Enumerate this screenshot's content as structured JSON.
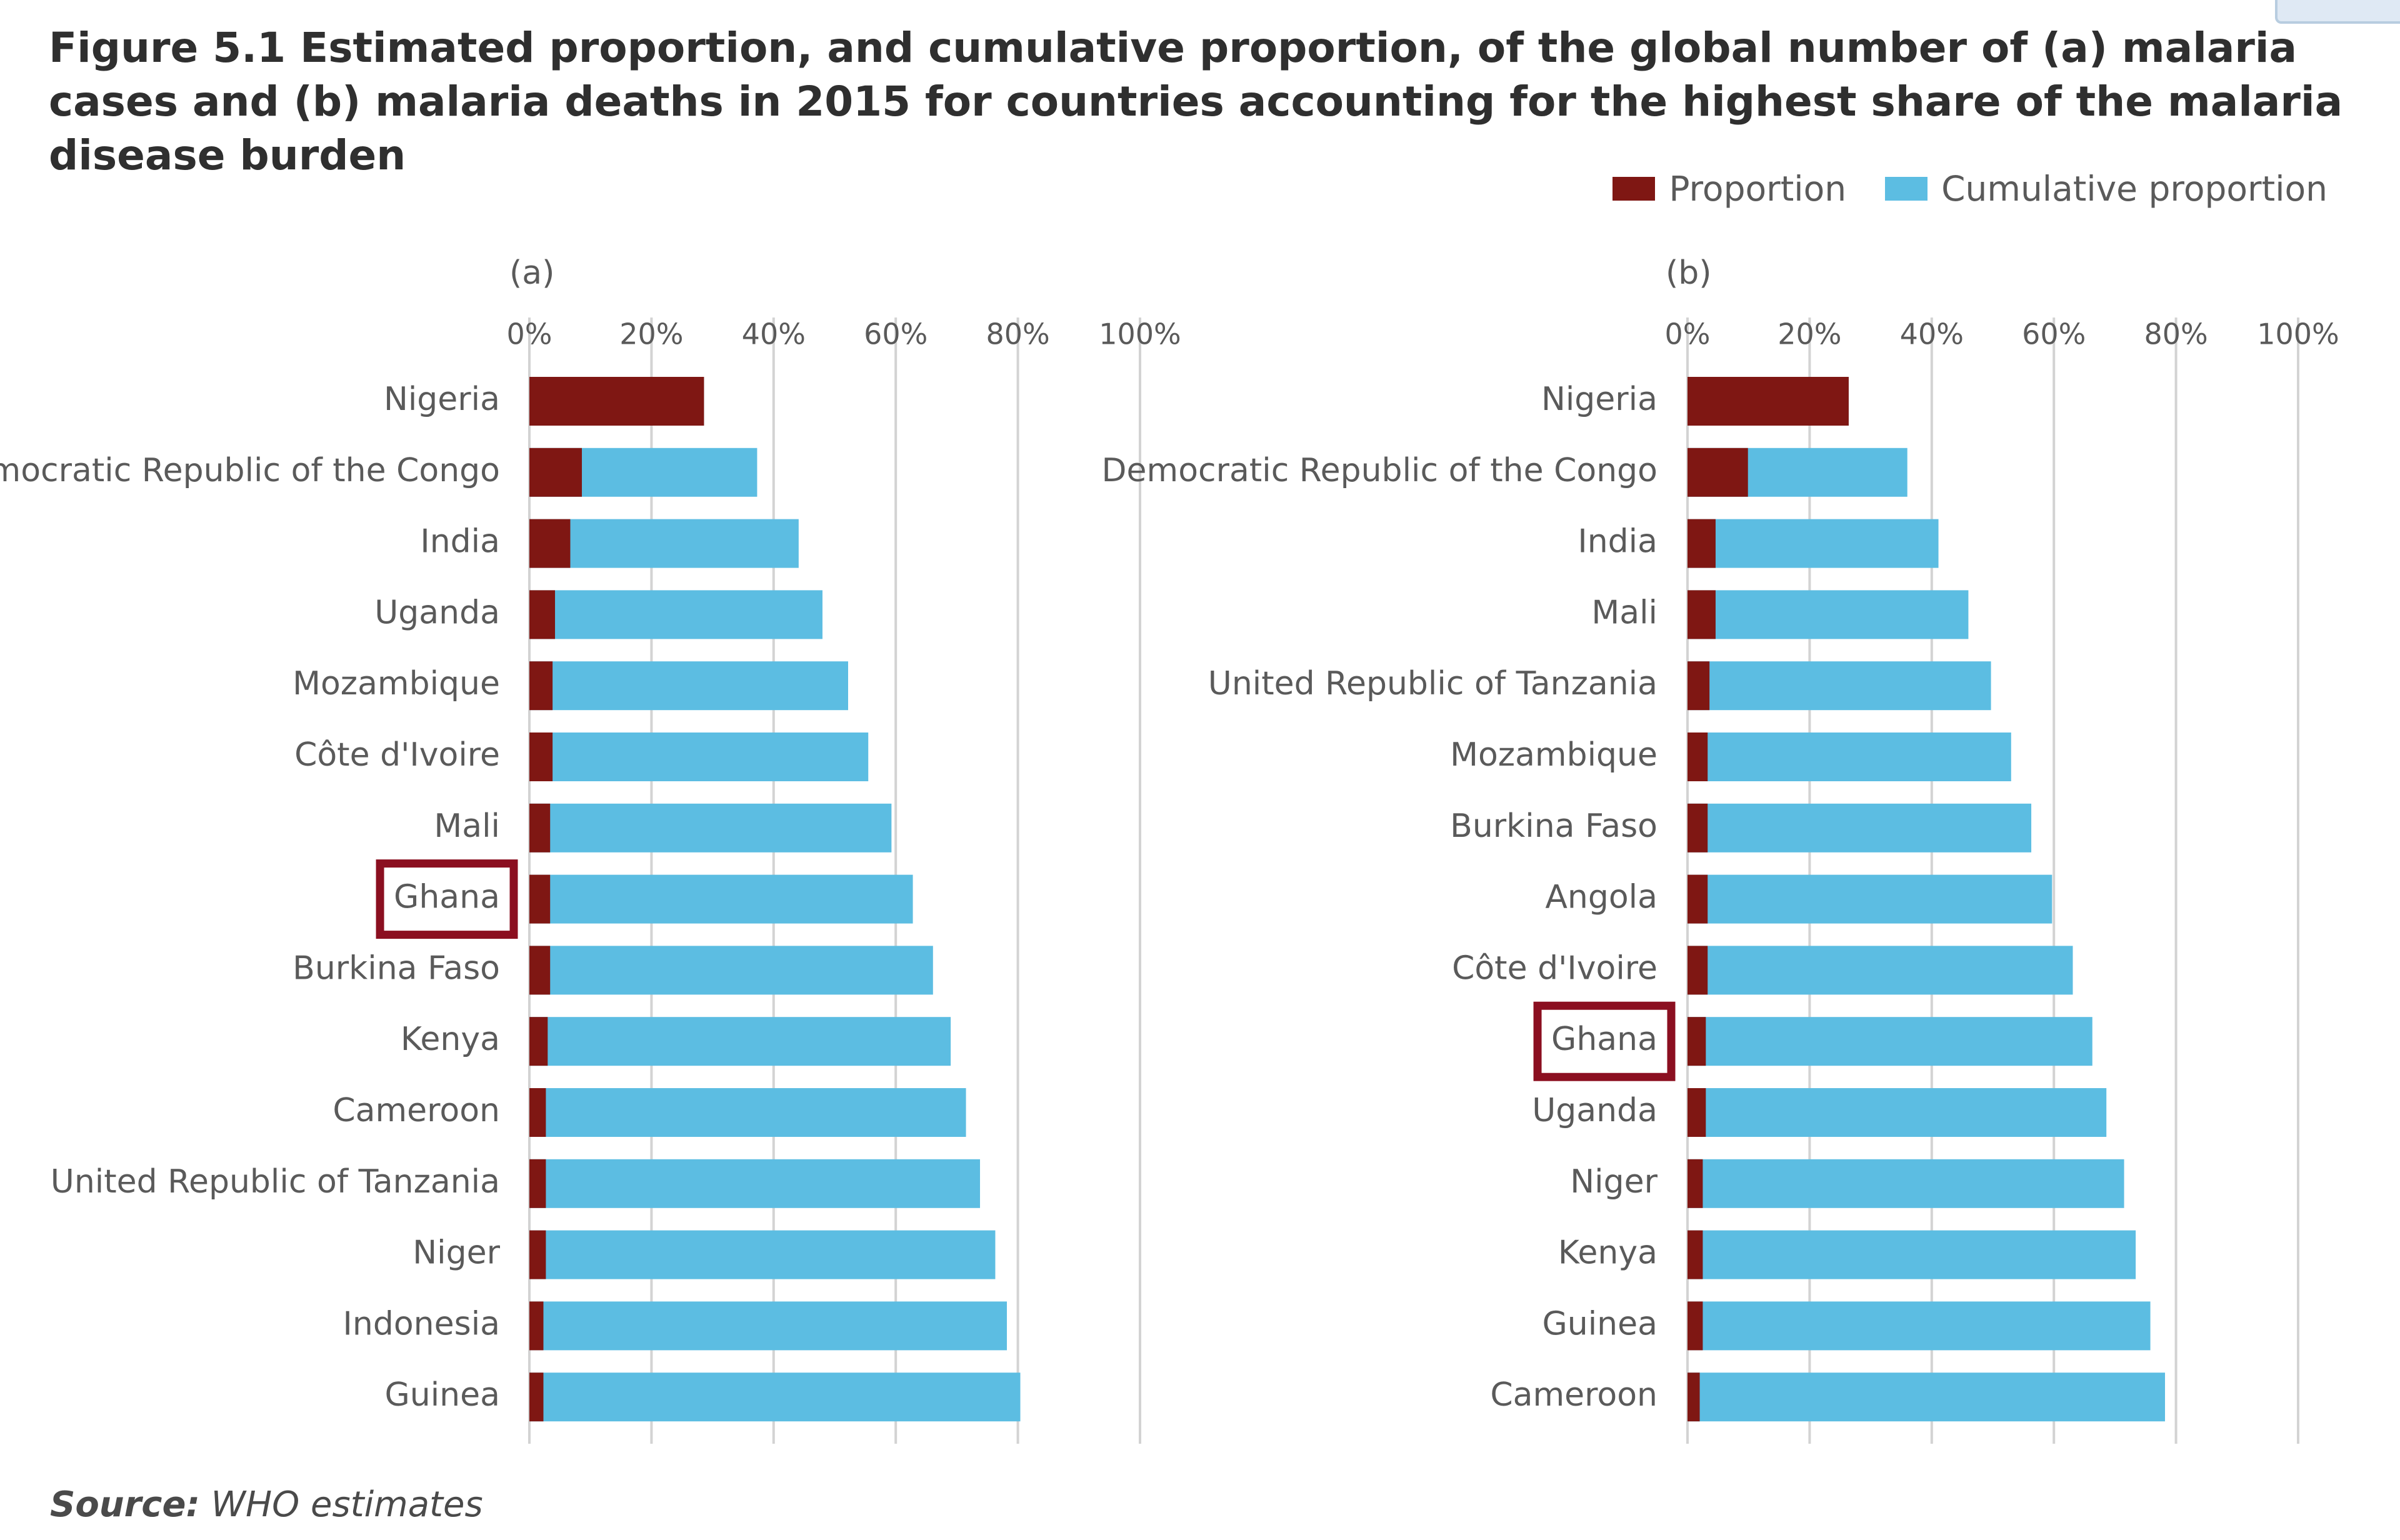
{
  "figure": {
    "title": "Figure 5.1 Estimated proportion, and cumulative proportion, of the global number of (a) malaria cases and (b) malaria deaths in 2015 for countries accounting for the highest share of the malaria disease burden",
    "source_label": "Source:",
    "source_text": "WHO estimates"
  },
  "legend": {
    "proportion": "Proportion",
    "cumulative": "Cumulative proportion"
  },
  "colors": {
    "proportion": "#7f1713",
    "cumulative": "#5cbde2",
    "highlight": "#8b0f20",
    "grid": "#d3d3d3",
    "label": "#5a5a5a"
  },
  "chart_data": [
    {
      "type": "bar",
      "orientation": "horizontal",
      "panel_label": "(a)",
      "metric": "malaria cases",
      "xlim": [
        0,
        100
      ],
      "ticks": [
        0,
        20,
        40,
        60,
        80,
        100
      ],
      "tick_labels": [
        "0%",
        "20%",
        "40%",
        "60%",
        "80%",
        "100%"
      ],
      "categories": [
        "Nigeria",
        "Democratic Republic of the Congo",
        "India",
        "Uganda",
        "Mozambique",
        "Côte d'Ivoire",
        "Mali",
        "Ghana",
        "Burkina Faso",
        "Kenya",
        "Cameroon",
        "United Republic of Tanzania",
        "Niger",
        "Indonesia",
        "Guinea"
      ],
      "series": [
        {
          "name": "Proportion",
          "values": [
            28.6,
            8.6,
            6.7,
            4.2,
            3.8,
            3.8,
            3.4,
            3.4,
            3.4,
            3.0,
            2.7,
            2.7,
            2.7,
            2.3,
            2.3
          ]
        },
        {
          "name": "Cumulative proportion",
          "values": [
            28.6,
            37.3,
            44.1,
            48.0,
            52.2,
            55.5,
            59.3,
            62.8,
            66.1,
            69.0,
            71.5,
            73.8,
            76.3,
            78.2,
            80.4
          ]
        }
      ],
      "highlighted": "Ghana"
    },
    {
      "type": "bar",
      "orientation": "horizontal",
      "panel_label": "(b)",
      "metric": "malaria deaths",
      "xlim": [
        0,
        100
      ],
      "ticks": [
        0,
        20,
        40,
        60,
        80,
        100
      ],
      "tick_labels": [
        "0%",
        "20%",
        "40%",
        "60%",
        "80%",
        "100%"
      ],
      "categories": [
        "Nigeria",
        "Democratic Republic of the Congo",
        "India",
        "Mali",
        "United Republic of Tanzania",
        "Mozambique",
        "Burkina Faso",
        "Angola",
        "Côte d'Ivoire",
        "Ghana",
        "Uganda",
        "Niger",
        "Kenya",
        "Guinea",
        "Cameroon"
      ],
      "series": [
        {
          "name": "Proportion",
          "values": [
            26.4,
            9.9,
            4.6,
            4.6,
            3.6,
            3.3,
            3.3,
            3.3,
            3.3,
            3.0,
            3.0,
            2.5,
            2.5,
            2.5,
            2.0
          ]
        },
        {
          "name": "Cumulative proportion",
          "values": [
            26.4,
            36.0,
            41.1,
            46.0,
            49.7,
            53.0,
            56.3,
            59.7,
            63.1,
            66.3,
            68.6,
            71.5,
            73.4,
            75.8,
            78.2
          ]
        }
      ],
      "highlighted": "Ghana"
    }
  ]
}
